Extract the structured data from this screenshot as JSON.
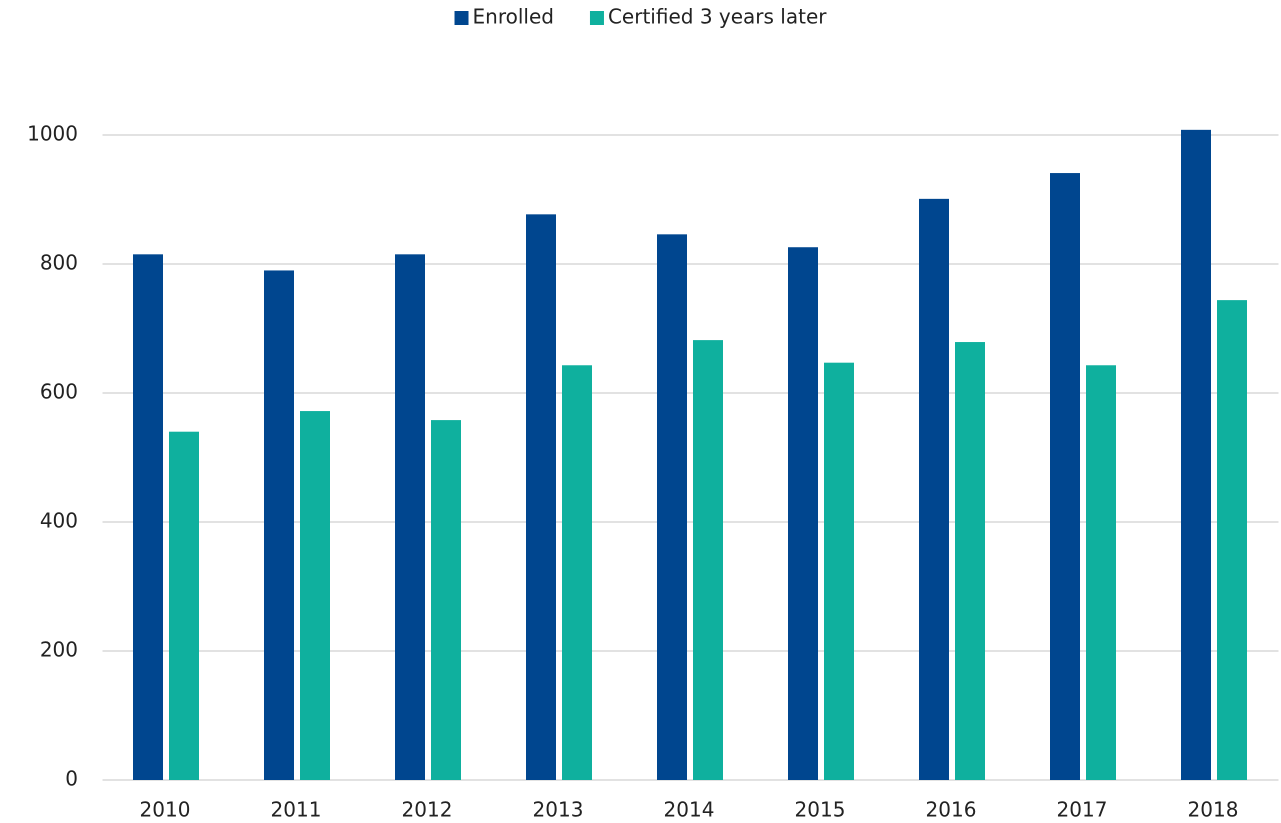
{
  "chart_data": {
    "type": "bar",
    "categories": [
      "2010",
      "2011",
      "2012",
      "2013",
      "2014",
      "2015",
      "2016",
      "2017",
      "2018"
    ],
    "series": [
      {
        "name": "Enrolled",
        "color": "#00468f",
        "values": [
          815,
          790,
          815,
          877,
          846,
          826,
          901,
          941,
          1008
        ]
      },
      {
        "name": "Certified 3 years later",
        "color": "#0fb09e",
        "values": [
          540,
          572,
          558,
          643,
          682,
          647,
          679,
          643,
          744
        ]
      }
    ],
    "ylim": [
      0,
      1000
    ],
    "yticks": [
      0,
      200,
      400,
      600,
      800,
      1000
    ],
    "grid": true,
    "legend": "top"
  }
}
